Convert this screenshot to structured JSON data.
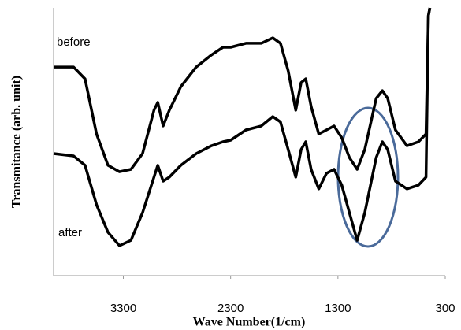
{
  "chart_data": {
    "type": "line",
    "x_label": "Wave Number(1/cm)",
    "y_label": "Transmitance (arb. unit)",
    "x": [
      3950,
      3764,
      3657,
      3550,
      3443,
      3336,
      3229,
      3121,
      3014,
      2979,
      2929,
      2871,
      2764,
      2621,
      2479,
      2371,
      2300,
      2157,
      2014,
      1907,
      1836,
      1764,
      1693,
      1643,
      1600,
      1550,
      1479,
      1407,
      1336,
      1264,
      1193,
      1121,
      1050,
      943,
      886,
      836,
      764,
      657,
      550,
      479,
      457,
      443
    ],
    "series": [
      {
        "name": "before",
        "color": "#000000",
        "values": [
          77.9,
          77.9,
          73.5,
          52.9,
          41.2,
          38.8,
          39.7,
          45.6,
          61.8,
          64.7,
          55.9,
          61.8,
          70.6,
          77.9,
          82.4,
          85.3,
          85.3,
          86.8,
          86.8,
          88.8,
          86.8,
          76.5,
          61.8,
          72.1,
          73.5,
          63.2,
          52.9,
          54.4,
          55.9,
          51.5,
          44.1,
          39.7,
          47.1,
          66.2,
          69.1,
          66.2,
          54.4,
          48.5,
          50,
          52.9,
          97.1,
          100
        ]
      },
      {
        "name": "after",
        "color": "#000000",
        "values": [
          45.6,
          44.7,
          41.2,
          26.5,
          16.2,
          11.2,
          13.2,
          23.5,
          36.8,
          41.2,
          35.3,
          36.8,
          41.2,
          45.6,
          48.5,
          50,
          50.6,
          54.4,
          55.9,
          59.4,
          57.4,
          47.1,
          36.8,
          47.1,
          50,
          39.7,
          32.4,
          38.2,
          39.7,
          33.8,
          23.5,
          13.2,
          23.5,
          44.1,
          50,
          47.1,
          35.3,
          32.4,
          33.8,
          36.8,
          97.1,
          100
        ]
      }
    ],
    "xlim": [
      3950,
      300
    ],
    "xticks": [
      3300,
      2300,
      1300,
      300
    ],
    "ylim": [
      0,
      100
    ]
  }
}
